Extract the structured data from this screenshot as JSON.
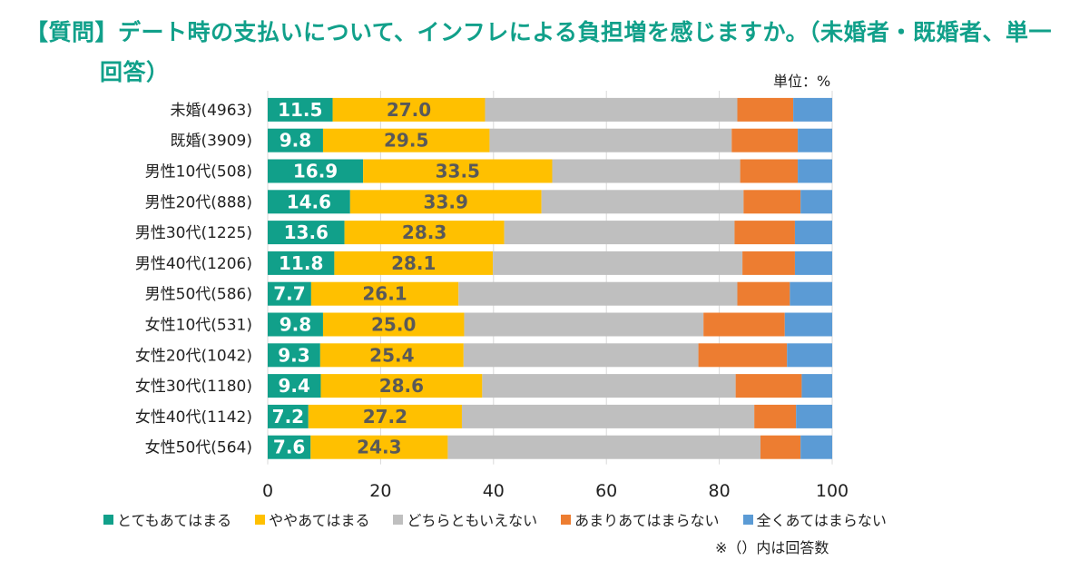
{
  "title": {
    "line1": "【質問】デート時の支払いについて、インフレによる負担増を感じますか。（未婚者・既婚者、単一",
    "line2": "回答）"
  },
  "unit_label": "単位：%",
  "footnote": "※（）内は回答数",
  "colors": {
    "very_much": "#11A08A",
    "somewhat": "#FFC000",
    "neutral": "#BFBFBF",
    "not_much": "#ED7D31",
    "not_at_all": "#5B9BD5",
    "grid": "#D9D9D9"
  },
  "chart_data": {
    "type": "bar",
    "orientation": "horizontal",
    "stacked": true,
    "title": "【質問】デート時の支払いについて、インフレによる負担増を感じますか。（未婚者・既婚者、単一回答）",
    "xlabel": "",
    "ylabel": "",
    "unit": "%",
    "xlim": [
      0,
      100
    ],
    "xticks": [
      0,
      20,
      40,
      60,
      80,
      100
    ],
    "grid": true,
    "legend_position": "bottom",
    "categories": [
      "未婚(4963)",
      "既婚(3909)",
      "男性10代(508)",
      "男性20代(888)",
      "男性30代(1225)",
      "男性40代(1206)",
      "男性50代(586)",
      "女性10代(531)",
      "女性20代(1042)",
      "女性30代(1180)",
      "女性40代(1142)",
      "女性50代(564)"
    ],
    "series": [
      {
        "name": "とてもあてはまる",
        "color_key": "very_much",
        "labeled": true,
        "label_style": "white",
        "values": [
          11.5,
          9.8,
          16.9,
          14.6,
          13.6,
          11.8,
          7.7,
          9.8,
          9.3,
          9.4,
          7.2,
          7.6
        ]
      },
      {
        "name": "ややあてはまる",
        "color_key": "somewhat",
        "labeled": true,
        "label_style": "gray",
        "values": [
          27.0,
          29.5,
          33.5,
          33.9,
          28.3,
          28.1,
          26.1,
          25.0,
          25.4,
          28.6,
          27.2,
          24.3
        ]
      },
      {
        "name": "どちらともいえない",
        "color_key": "neutral",
        "labeled": false,
        "values": [
          44.7,
          42.9,
          33.3,
          35.8,
          40.8,
          44.2,
          49.4,
          42.4,
          41.6,
          44.9,
          51.8,
          55.4
        ]
      },
      {
        "name": "あまりあてはまらない",
        "color_key": "not_much",
        "labeled": false,
        "values": [
          9.9,
          11.7,
          10.2,
          10.1,
          10.7,
          9.3,
          9.3,
          14.4,
          15.7,
          11.7,
          7.4,
          7.1
        ]
      },
      {
        "name": "全くあてはまらない",
        "color_key": "not_at_all",
        "labeled": false,
        "values": [
          6.9,
          6.1,
          6.1,
          5.6,
          6.6,
          6.6,
          7.5,
          8.4,
          8.0,
          5.4,
          6.4,
          5.6
        ]
      }
    ]
  }
}
